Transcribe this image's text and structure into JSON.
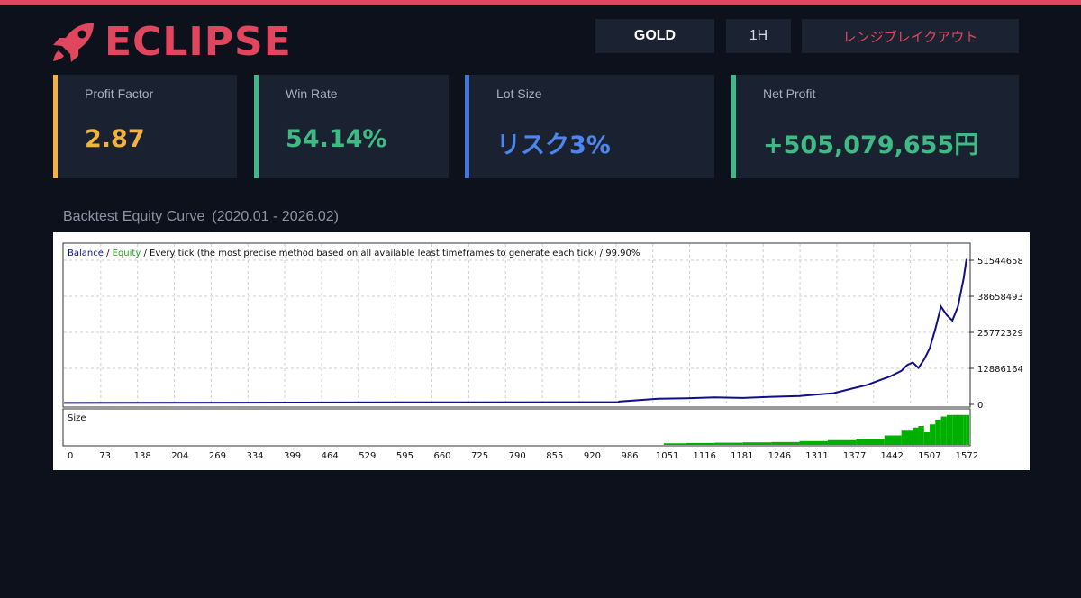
{
  "brand": {
    "name": "ECLIPSE",
    "icon": "rocket-icon",
    "color": "#e0475e"
  },
  "header": {
    "symbol": "GOLD",
    "timeframe": "1H",
    "strategy": "レンジブレイクアウト"
  },
  "stats": [
    {
      "label": "Profit Factor",
      "value": "2.87",
      "color": "#f3b23f"
    },
    {
      "label": "Win Rate",
      "value": "54.14%",
      "color": "#3fba84"
    },
    {
      "label": "Lot Size",
      "value": "リスク3%",
      "color": "#4d86ee"
    },
    {
      "label": "Net Profit",
      "value": "+505,079,655円",
      "color": "#3fba84"
    }
  ],
  "section": {
    "title": "Backtest Equity Curve",
    "range": "(2020.01 - 2026.02)"
  },
  "chart_data": {
    "type": "line",
    "legend": {
      "balance": "Balance",
      "equity": "Equity",
      "separator": "/",
      "description": "/ Every tick (the most precise method based on all available least timeframes to generate each tick) / 99.90%"
    },
    "y_ticks": [
      "51544658",
      "38658493",
      "25772329",
      "12886164",
      "0"
    ],
    "y_tick_values": [
      51544658,
      38658493,
      25772329,
      12886164,
      0
    ],
    "ylim": [
      0,
      55000000
    ],
    "x_ticks": [
      "0",
      "73",
      "138",
      "204",
      "269",
      "334",
      "399",
      "464",
      "529",
      "595",
      "660",
      "725",
      "790",
      "855",
      "920",
      "986",
      "1051",
      "1116",
      "1181",
      "1246",
      "1311",
      "1377",
      "1442",
      "1507",
      "1572"
    ],
    "xlim": [
      0,
      1600
    ],
    "series": [
      {
        "name": "Balance",
        "color": "#0f0f8a",
        "x": [
          0,
          300,
          600,
          980,
          981,
          1050,
          1100,
          1150,
          1200,
          1250,
          1300,
          1330,
          1360,
          1390,
          1420,
          1440,
          1460,
          1480,
          1490,
          1500,
          1510,
          1520,
          1530,
          1540,
          1550,
          1560,
          1570,
          1580,
          1590,
          1595
        ],
        "y": [
          500000,
          600000,
          700000,
          800000,
          1000000,
          2000000,
          2200000,
          2500000,
          2300000,
          2700000,
          3000000,
          3500000,
          4000000,
          5500000,
          7000000,
          8500000,
          10000000,
          12000000,
          14000000,
          15000000,
          13000000,
          16000000,
          20000000,
          27000000,
          35000000,
          32000000,
          30000000,
          35000000,
          45000000,
          52000000
        ]
      }
    ],
    "size_panel": {
      "label": "Size",
      "color": "#00b000",
      "x": [
        1060,
        1100,
        1150,
        1200,
        1250,
        1300,
        1350,
        1400,
        1450,
        1480,
        1500,
        1510,
        1520,
        1530,
        1540,
        1550,
        1560,
        1570,
        1580,
        1590,
        1595
      ],
      "y": [
        5,
        6,
        7,
        8,
        9,
        12,
        15,
        20,
        30,
        45,
        55,
        60,
        40,
        65,
        80,
        90,
        95,
        95,
        95,
        95,
        95
      ]
    }
  }
}
